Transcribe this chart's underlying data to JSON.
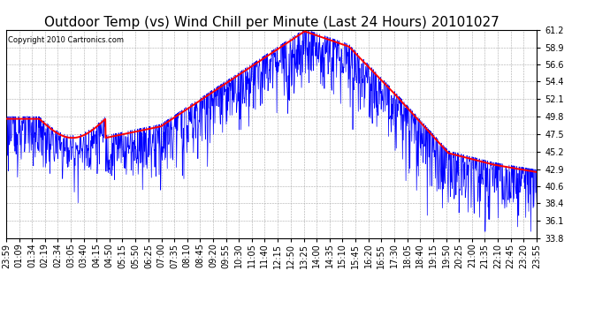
{
  "title": "Outdoor Temp (vs) Wind Chill per Minute (Last 24 Hours) 20101027",
  "copyright": "Copyright 2010 Cartronics.com",
  "yticks": [
    33.8,
    36.1,
    38.4,
    40.6,
    42.9,
    45.2,
    47.5,
    49.8,
    52.1,
    54.4,
    56.6,
    58.9,
    61.2
  ],
  "ylim": [
    33.8,
    61.2
  ],
  "xtick_labels": [
    "23:59",
    "01:09",
    "01:34",
    "02:19",
    "02:34",
    "03:05",
    "03:40",
    "04:15",
    "04:50",
    "05:15",
    "05:50",
    "06:25",
    "07:00",
    "07:35",
    "08:10",
    "08:45",
    "09:20",
    "09:55",
    "10:30",
    "11:05",
    "11:40",
    "12:15",
    "12:50",
    "13:25",
    "14:00",
    "14:35",
    "15:10",
    "15:45",
    "16:20",
    "16:55",
    "17:30",
    "18:05",
    "18:40",
    "19:15",
    "19:50",
    "20:25",
    "21:00",
    "21:35",
    "22:10",
    "22:45",
    "23:20",
    "23:55"
  ],
  "line_color_blue": "#0000ff",
  "line_color_red": "#ff0000",
  "bg_color": "#ffffff",
  "grid_color": "#aaaaaa",
  "title_fontsize": 11,
  "tick_fontsize": 7,
  "copyright_fontsize": 6
}
